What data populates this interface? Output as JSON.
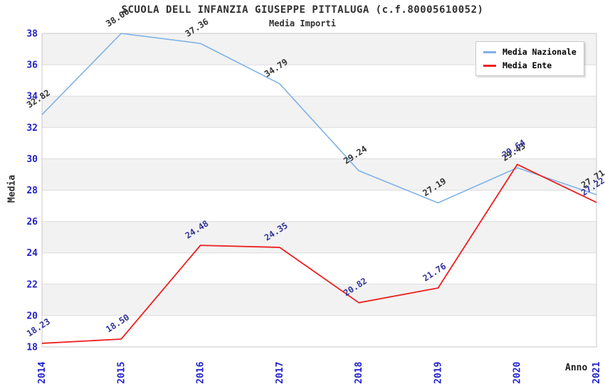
{
  "title": "SCUOLA DELL INFANZIA GIUSEPPE PITTALUGA (c.f.80005610052)",
  "subtitle": "Media Importi",
  "colors": {
    "band": "#f2f2f2",
    "gridline": "#dcdcdc",
    "plot_border": "#c8c8c8",
    "axis_tick_text": "#2222cc",
    "title_text": "#303030",
    "nazionale_line": "#7fb2e6",
    "ente_line": "#ee1f1f",
    "nazionale_label": "#333333",
    "ente_label": "#333399"
  },
  "chart_data": {
    "type": "line",
    "x": [
      2014,
      2015,
      2016,
      2017,
      2018,
      2019,
      2020,
      2021
    ],
    "xlabel": "Anno",
    "ylabel": "Media",
    "ylim": [
      18,
      38
    ],
    "ytick_step": 2,
    "grid": "horizontal-bands",
    "legend_position": "top-right",
    "series": [
      {
        "name": "Media Nazionale",
        "color": "#7fb2e6",
        "label_color": "#333333",
        "values": [
          32.82,
          38.0,
          37.36,
          34.79,
          29.24,
          27.19,
          29.43,
          27.71
        ]
      },
      {
        "name": "Media Ente",
        "color": "#ee1f1f",
        "label_color": "#333399",
        "values": [
          18.23,
          18.5,
          24.48,
          24.35,
          20.82,
          21.76,
          29.64,
          27.22
        ]
      }
    ]
  }
}
